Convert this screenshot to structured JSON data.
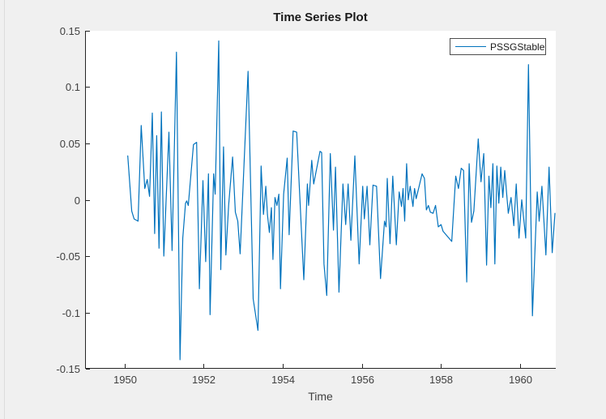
{
  "window": {
    "background": "#f0f0f0"
  },
  "chart": {
    "title": "Time Series Plot",
    "xlabel": "Time",
    "legend_label": "PSSGStable",
    "line_color": "#0072BD",
    "axis_color": "#262626",
    "tick_label_color": "#404040"
  },
  "chart_data": {
    "type": "line",
    "title": "Time Series Plot",
    "xlabel": "Time",
    "ylabel": "",
    "legend": [
      "PSSGStable"
    ],
    "legend_position": "top-right-inside",
    "grid": false,
    "xlim": [
      1949.0,
      1960.9
    ],
    "ylim": [
      -0.15,
      0.15
    ],
    "x_ticks": [
      1950,
      1952,
      1954,
      1956,
      1958,
      1960
    ],
    "x_tick_labels": [
      "1950",
      "1952",
      "1954",
      "1956",
      "1958",
      "1960"
    ],
    "y_ticks": [
      -0.15,
      -0.1,
      -0.05,
      0,
      0.05,
      0.1,
      0.15
    ],
    "y_tick_labels": [
      "-0.15",
      "-0.1",
      "-0.05",
      "0",
      "0.05",
      "0.1",
      "0.15"
    ],
    "series": [
      {
        "name": "PSSGStable",
        "color": "#0072BD",
        "points": [
          [
            1950.08,
            0.039
          ],
          [
            1950.18,
            -0.01
          ],
          [
            1950.24,
            -0.017
          ],
          [
            1950.34,
            -0.019
          ],
          [
            1950.42,
            0.066
          ],
          [
            1950.51,
            0.01
          ],
          [
            1950.57,
            0.018
          ],
          [
            1950.63,
            0.003
          ],
          [
            1950.7,
            0.077
          ],
          [
            1950.76,
            -0.03
          ],
          [
            1950.81,
            0.057
          ],
          [
            1950.87,
            -0.043
          ],
          [
            1950.93,
            0.078
          ],
          [
            1950.99,
            -0.05
          ],
          [
            1951.12,
            0.06
          ],
          [
            1951.2,
            -0.045
          ],
          [
            1951.31,
            0.131
          ],
          [
            1951.4,
            -0.142
          ],
          [
            1951.47,
            -0.034
          ],
          [
            1951.54,
            -0.003
          ],
          [
            1951.57,
            -0.001
          ],
          [
            1951.61,
            -0.005
          ],
          [
            1951.74,
            0.049
          ],
          [
            1951.82,
            0.051
          ],
          [
            1951.89,
            -0.079
          ],
          [
            1951.98,
            0.017
          ],
          [
            1952.05,
            -0.055
          ],
          [
            1952.12,
            0.023
          ],
          [
            1952.16,
            -0.102
          ],
          [
            1952.25,
            0.023
          ],
          [
            1952.29,
            0.005
          ],
          [
            1952.38,
            0.141
          ],
          [
            1952.43,
            -0.062
          ],
          [
            1952.5,
            0.047
          ],
          [
            1952.56,
            -0.049
          ],
          [
            1952.63,
            -0.005
          ],
          [
            1952.73,
            0.038
          ],
          [
            1952.8,
            -0.011
          ],
          [
            1952.86,
            -0.019
          ],
          [
            1952.92,
            -0.048
          ],
          [
            1953.12,
            0.114
          ],
          [
            1953.25,
            -0.088
          ],
          [
            1953.37,
            -0.116
          ],
          [
            1953.45,
            0.03
          ],
          [
            1953.51,
            -0.013
          ],
          [
            1953.57,
            0.012
          ],
          [
            1953.61,
            -0.013
          ],
          [
            1953.66,
            -0.029
          ],
          [
            1953.71,
            -0.007
          ],
          [
            1953.75,
            -0.053
          ],
          [
            1953.8,
            0.002
          ],
          [
            1953.85,
            -0.005
          ],
          [
            1953.9,
            0.005
          ],
          [
            1953.94,
            -0.079
          ],
          [
            1954.02,
            0.005
          ],
          [
            1954.11,
            0.037
          ],
          [
            1954.16,
            -0.031
          ],
          [
            1954.26,
            0.061
          ],
          [
            1954.35,
            0.06
          ],
          [
            1954.53,
            -0.071
          ],
          [
            1954.62,
            0.014
          ],
          [
            1954.65,
            -0.005
          ],
          [
            1954.73,
            0.035
          ],
          [
            1954.78,
            0.014
          ],
          [
            1954.94,
            0.043
          ],
          [
            1954.98,
            0.042
          ],
          [
            1955.04,
            -0.057
          ],
          [
            1955.11,
            -0.085
          ],
          [
            1955.2,
            0.041
          ],
          [
            1955.28,
            -0.027
          ],
          [
            1955.33,
            0.029
          ],
          [
            1955.42,
            -0.082
          ],
          [
            1955.52,
            0.014
          ],
          [
            1955.59,
            -0.022
          ],
          [
            1955.65,
            0.014
          ],
          [
            1955.72,
            -0.036
          ],
          [
            1955.82,
            0.039
          ],
          [
            1955.93,
            -0.057
          ],
          [
            1956.02,
            0.012
          ],
          [
            1956.06,
            -0.017
          ],
          [
            1956.13,
            0.012
          ],
          [
            1956.2,
            -0.04
          ],
          [
            1956.28,
            0.013
          ],
          [
            1956.37,
            0.012
          ],
          [
            1956.47,
            -0.07
          ],
          [
            1956.57,
            -0.019
          ],
          [
            1956.61,
            -0.024
          ],
          [
            1956.64,
            0.019
          ],
          [
            1956.71,
            -0.039
          ],
          [
            1956.78,
            0.021
          ],
          [
            1956.87,
            -0.04
          ],
          [
            1956.94,
            0.007
          ],
          [
            1957.0,
            -0.006
          ],
          [
            1957.04,
            0.01
          ],
          [
            1957.08,
            -0.019
          ],
          [
            1957.13,
            0.032
          ],
          [
            1957.17,
            0.0
          ],
          [
            1957.22,
            0.012
          ],
          [
            1957.29,
            -0.006
          ],
          [
            1957.33,
            0.01
          ],
          [
            1957.37,
            0.001
          ],
          [
            1957.52,
            0.023
          ],
          [
            1957.58,
            0.019
          ],
          [
            1957.63,
            -0.009
          ],
          [
            1957.68,
            -0.005
          ],
          [
            1957.73,
            -0.011
          ],
          [
            1957.8,
            -0.012
          ],
          [
            1957.86,
            -0.005
          ],
          [
            1957.93,
            -0.024
          ],
          [
            1958.0,
            -0.022
          ],
          [
            1958.05,
            -0.028
          ],
          [
            1958.27,
            -0.037
          ],
          [
            1958.37,
            0.021
          ],
          [
            1958.44,
            0.01
          ],
          [
            1958.51,
            0.028
          ],
          [
            1958.57,
            0.026
          ],
          [
            1958.65,
            -0.073
          ],
          [
            1958.71,
            0.032
          ],
          [
            1958.77,
            -0.02
          ],
          [
            1958.83,
            -0.01
          ],
          [
            1958.94,
            0.054
          ],
          [
            1959.01,
            0.016
          ],
          [
            1959.08,
            0.041
          ],
          [
            1959.15,
            -0.058
          ],
          [
            1959.21,
            0.021
          ],
          [
            1959.26,
            -0.007
          ],
          [
            1959.31,
            0.032
          ],
          [
            1959.36,
            -0.057
          ],
          [
            1959.41,
            0.03
          ],
          [
            1959.46,
            -0.003
          ],
          [
            1959.51,
            0.029
          ],
          [
            1959.56,
            0.002
          ],
          [
            1959.61,
            0.026
          ],
          [
            1959.7,
            -0.012
          ],
          [
            1959.77,
            0.002
          ],
          [
            1959.84,
            -0.023
          ],
          [
            1959.9,
            0.014
          ],
          [
            1959.97,
            -0.034
          ],
          [
            1960.04,
            0.0
          ],
          [
            1960.14,
            -0.034
          ],
          [
            1960.21,
            0.12
          ],
          [
            1960.31,
            -0.103
          ],
          [
            1960.43,
            0.007
          ],
          [
            1960.48,
            -0.019
          ],
          [
            1960.55,
            0.012
          ],
          [
            1960.65,
            -0.049
          ],
          [
            1960.73,
            0.029
          ],
          [
            1960.81,
            -0.047
          ],
          [
            1960.88,
            -0.012
          ]
        ]
      }
    ]
  }
}
